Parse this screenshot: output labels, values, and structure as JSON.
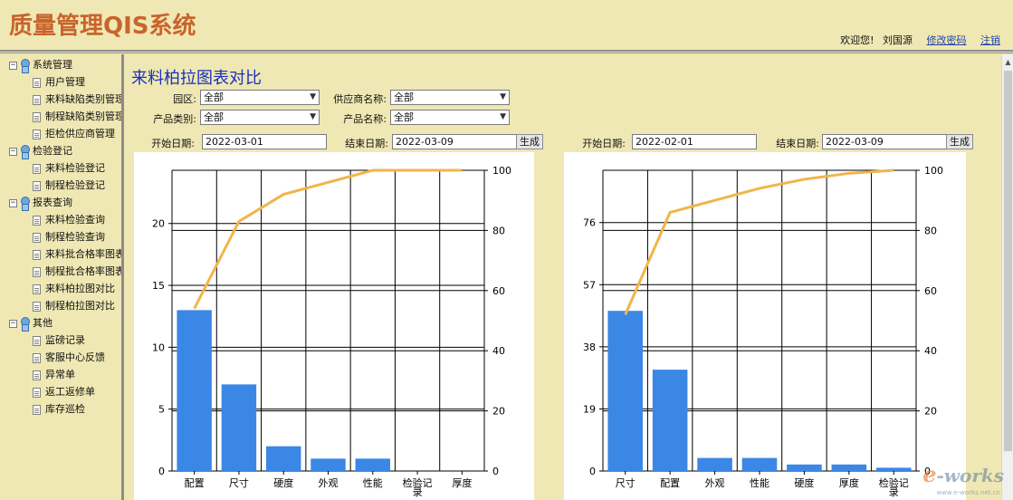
{
  "app": {
    "title": "质量管理QIS系统",
    "welcome": "欢迎您!",
    "username": "刘国源",
    "change_password": "修改密码",
    "logout": "注销"
  },
  "sidebar": {
    "groups": [
      {
        "label": "系统管理",
        "items": [
          "用户管理",
          "来料缺陷类别管理",
          "制程缺陷类别管理",
          "拒检供应商管理"
        ]
      },
      {
        "label": "检验登记",
        "items": [
          "来料检验登记",
          "制程检验登记"
        ]
      },
      {
        "label": "报表查询",
        "items": [
          "来料检验查询",
          "制程检验查询",
          "来料批合格率图表",
          "制程批合格率图表",
          "来料柏拉图对比",
          "制程柏拉图对比"
        ]
      },
      {
        "label": "其他",
        "items": [
          "监磅记录",
          "客服中心反馈",
          "异常单",
          "返工返修单",
          "库存巡检"
        ]
      }
    ]
  },
  "main": {
    "title": "来料柏拉图表对比",
    "filters": {
      "park_label": "园区:",
      "park_value": "全部",
      "supplier_label": "供应商名称:",
      "supplier_value": "全部",
      "category_label": "产品类别:",
      "category_value": "全部",
      "product_label": "产品名称:",
      "product_value": "全部"
    },
    "left": {
      "start_label": "开始日期:",
      "start_value": "2022-03-01",
      "end_label": "结束日期:",
      "end_value": "2022-03-09",
      "generate": "生成"
    },
    "right": {
      "start_label": "开始日期:",
      "start_value": "2022-02-01",
      "end_label": "结束日期:",
      "end_value": "2022-03-09",
      "generate": "生成"
    }
  },
  "watermark": {
    "brand_e": "e",
    "brand_rest": "-works",
    "sub": "www.e-works.net.cn"
  },
  "chart_data": [
    {
      "type": "bar",
      "categories": [
        "配置",
        "尺寸",
        "硬度",
        "外观",
        "性能",
        "检验记录",
        "厚度"
      ],
      "values": [
        13,
        7,
        2,
        1,
        1,
        0,
        0
      ],
      "cumulative_percent": [
        54,
        83,
        92,
        96,
        100,
        100,
        100
      ],
      "y_ticks": [
        0,
        5,
        10,
        15,
        20
      ],
      "ylim": [
        0,
        24.3
      ],
      "y2_ticks": [
        0,
        20,
        40,
        60,
        80,
        100
      ],
      "y2lim": [
        0,
        100
      ],
      "bar_color": "#3b87e6",
      "line_color": "#f0b54a",
      "grid": true
    },
    {
      "type": "bar",
      "categories": [
        "尺寸",
        "配置",
        "外观",
        "性能",
        "硬度",
        "厚度",
        "检验记录"
      ],
      "values": [
        49,
        31,
        4,
        4,
        2,
        2,
        1
      ],
      "cumulative_percent": [
        52,
        86,
        90,
        94,
        97,
        99,
        100
      ],
      "y_ticks": [
        0,
        19,
        38,
        57,
        76
      ],
      "ylim": [
        0,
        92
      ],
      "y2_ticks": [
        0,
        20,
        40,
        60,
        80,
        100
      ],
      "y2lim": [
        0,
        100
      ],
      "bar_color": "#3b87e6",
      "line_color": "#f0b54a",
      "grid": true
    }
  ]
}
